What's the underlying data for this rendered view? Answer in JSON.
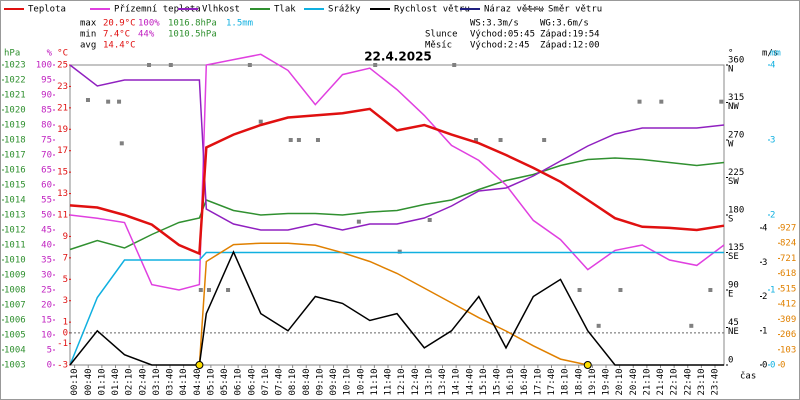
{
  "chart_data": {
    "type": "line",
    "title": "22.4.2025",
    "legend": [
      {
        "name": "Teplota",
        "color": "#e01010"
      },
      {
        "name": "Přízemní teplota",
        "color": "#e040e0"
      },
      {
        "name": "Vlhkost",
        "color": "#9020c0"
      },
      {
        "name": "Tlak",
        "color": "#309030"
      },
      {
        "name": "Srážky",
        "color": "#10b0e0"
      },
      {
        "name": "Rychlost větru",
        "color": "#000000"
      },
      {
        "name": "Náraz větru",
        "color": "#202080"
      },
      {
        "name": "Směr větru",
        "color": "#808080"
      }
    ],
    "stats": [
      [
        "max",
        "20.9°C",
        "100%",
        "1016.8hPa",
        "1.5mm"
      ],
      [
        "min",
        "7.4°C",
        "44%",
        "1010.5hPa"
      ],
      [
        "avg",
        "14.4°C"
      ]
    ],
    "wind": [
      "WS:3.3m/s",
      "WG:3.6m/s"
    ],
    "sun": [
      "Slunce",
      "Východ:05:45",
      "Západ:19:54"
    ],
    "moon": [
      "Měsíc",
      "Východ:2:45",
      "Západ:12:00"
    ],
    "xlabel": "čas",
    "xlim": [
      0,
      24
    ],
    "xticks": [
      {
        "value": 0.17,
        "label": "00:10"
      },
      {
        "value": 0.67,
        "label": "00:40"
      },
      {
        "value": 1.17,
        "label": "01:10"
      },
      {
        "value": 1.67,
        "label": "01:40"
      },
      {
        "value": 2.17,
        "label": "02:10"
      },
      {
        "value": 2.67,
        "label": "02:40"
      },
      {
        "value": 3.17,
        "label": "03:10"
      },
      {
        "value": 3.67,
        "label": "03:40"
      },
      {
        "value": 4.17,
        "label": "04:10"
      },
      {
        "value": 4.67,
        "label": "04:40"
      },
      {
        "value": 5.17,
        "label": "05:10"
      },
      {
        "value": 5.67,
        "label": "05:40"
      },
      {
        "value": 6.17,
        "label": "06:10"
      },
      {
        "value": 6.67,
        "label": "06:40"
      },
      {
        "value": 7.17,
        "label": "07:10"
      },
      {
        "value": 7.67,
        "label": "07:40"
      },
      {
        "value": 8.17,
        "label": "08:10"
      },
      {
        "value": 8.67,
        "label": "08:40"
      },
      {
        "value": 9.17,
        "label": "09:10"
      },
      {
        "value": 9.67,
        "label": "09:40"
      },
      {
        "value": 10.17,
        "label": "10:10"
      },
      {
        "value": 10.67,
        "label": "10:40"
      },
      {
        "value": 11.17,
        "label": "11:10"
      },
      {
        "value": 11.67,
        "label": "11:40"
      },
      {
        "value": 12.17,
        "label": "12:10"
      },
      {
        "value": 12.67,
        "label": "12:40"
      },
      {
        "value": 13.17,
        "label": "13:10"
      },
      {
        "value": 13.67,
        "label": "13:40"
      },
      {
        "value": 14.17,
        "label": "14:10"
      },
      {
        "value": 14.67,
        "label": "14:40"
      },
      {
        "value": 15.17,
        "label": "15:10"
      },
      {
        "value": 15.67,
        "label": "15:40"
      },
      {
        "value": 16.17,
        "label": "16:10"
      },
      {
        "value": 16.67,
        "label": "16:40"
      },
      {
        "value": 17.17,
        "label": "17:10"
      },
      {
        "value": 17.67,
        "label": "17:40"
      },
      {
        "value": 18.17,
        "label": "18:10"
      },
      {
        "value": 18.67,
        "label": "18:40"
      },
      {
        "value": 19.17,
        "label": "19:10"
      },
      {
        "value": 19.67,
        "label": "19:40"
      },
      {
        "value": 20.17,
        "label": "20:10"
      },
      {
        "value": 20.67,
        "label": "20:40"
      },
      {
        "value": 21.17,
        "label": "21:10"
      },
      {
        "value": 21.67,
        "label": "21:40"
      },
      {
        "value": 22.17,
        "label": "22:10"
      },
      {
        "value": 22.67,
        "label": "22:40"
      },
      {
        "value": 23.17,
        "label": "23:10"
      },
      {
        "value": 23.67,
        "label": "23:40"
      }
    ],
    "axes": {
      "hpa": {
        "unit": "hPa",
        "color": "#309030",
        "lim": [
          1003,
          1023
        ],
        "ticks": [
          1003,
          1004,
          1005,
          1006,
          1007,
          1008,
          1009,
          1010,
          1011,
          1012,
          1013,
          1014,
          1015,
          1016,
          1017,
          1018,
          1019,
          1020,
          1021,
          1022,
          1023
        ]
      },
      "pct": {
        "unit": "%",
        "color": "#c020c0",
        "lim": [
          0,
          100
        ],
        "ticks": [
          0,
          5,
          10,
          15,
          20,
          25,
          30,
          35,
          40,
          45,
          50,
          55,
          60,
          65,
          70,
          75,
          80,
          85,
          90,
          95,
          100
        ]
      },
      "temp": {
        "unit": "°C",
        "color": "#e01010",
        "lim": [
          -3,
          25
        ],
        "ticks": [
          -3,
          -1,
          0,
          1,
          3,
          5,
          7,
          9,
          11,
          13,
          15,
          17,
          19,
          21,
          23,
          25
        ]
      },
      "dir": {
        "unit": "°",
        "color": "#000000",
        "lim": [
          0,
          360
        ],
        "ticks": [
          0,
          45,
          90,
          135,
          180,
          225,
          270,
          315,
          360
        ],
        "compass": [
          {
            "value": 45,
            "label": "NE"
          },
          {
            "value": 90,
            "label": "E"
          },
          {
            "value": 135,
            "label": "SE"
          },
          {
            "value": 180,
            "label": "S"
          },
          {
            "value": 225,
            "label": "SW"
          },
          {
            "value": 270,
            "label": "W"
          },
          {
            "value": 315,
            "label": "NW"
          },
          {
            "value": 360,
            "label": "N"
          }
        ]
      },
      "ms": {
        "unit": "m/s",
        "color": "#000000",
        "lim": [
          0,
          4
        ],
        "ticks": [
          0,
          1,
          2,
          3,
          4
        ]
      },
      "mm": {
        "unit": "mm",
        "color": "#10b0e0",
        "lim": [
          0,
          4
        ],
        "ticks": [
          0,
          1,
          2,
          3,
          4
        ]
      },
      "rad": {
        "color": "#e08000",
        "lim": [
          0,
          927
        ],
        "ticks": [
          0,
          103,
          206,
          309,
          412,
          515,
          618,
          721,
          824,
          927
        ]
      }
    },
    "x": [
      0,
      1,
      2,
      3,
      4,
      4.75,
      5,
      6,
      7,
      8,
      9,
      10,
      11,
      12,
      13,
      14,
      15,
      16,
      17,
      18,
      19,
      20,
      21,
      22,
      23,
      24
    ],
    "series": [
      {
        "name": "Tlak",
        "color": "#309030",
        "axis": "hpa",
        "values": [
          1010.7,
          1011.3,
          1010.8,
          1011.7,
          1012.5,
          1012.8,
          1014.0,
          1013.3,
          1013.0,
          1013.1,
          1013.1,
          1013.0,
          1013.2,
          1013.3,
          1013.7,
          1014.0,
          1014.7,
          1015.3,
          1015.7,
          1016.3,
          1016.7,
          1016.8,
          1016.7,
          1016.5,
          1016.3,
          1016.5
        ]
      },
      {
        "name": "Přízemní teplota",
        "color": "#e040e0",
        "axis": "temp",
        "values": [
          11.0,
          10.7,
          10.3,
          4.5,
          4.0,
          4.5,
          25.0,
          25.5,
          26.0,
          24.5,
          21.3,
          24.1,
          24.7,
          22.7,
          20.3,
          17.5,
          16.1,
          13.8,
          10.5,
          8.7,
          5.9,
          7.7,
          8.2,
          6.8,
          6.3,
          8.2
        ]
      },
      {
        "name": "Vlhkost",
        "color": "#9020c0",
        "axis": "pct",
        "values": [
          100,
          93,
          95,
          95,
          95,
          95,
          52,
          47,
          45,
          45,
          47,
          45,
          47,
          47,
          49,
          53,
          58,
          59,
          63,
          68,
          73,
          77,
          79,
          79,
          79,
          80
        ]
      },
      {
        "name": "Srážky",
        "color": "#10b0e0",
        "axis": "mm",
        "values": [
          0,
          0.9,
          1.4,
          1.4,
          1.4,
          1.4,
          1.5,
          1.5,
          1.5,
          1.5,
          1.5,
          1.5,
          1.5,
          1.5,
          1.5,
          1.5,
          1.5,
          1.5,
          1.5,
          1.5,
          1.5,
          1.5,
          1.5,
          1.5,
          1.5,
          1.5
        ]
      },
      {
        "name": "Sluneční záření",
        "color": "#e08000",
        "axis": "rad",
        "values": [
          null,
          null,
          null,
          null,
          null,
          0,
          700,
          815,
          824,
          824,
          810,
          760,
          700,
          620,
          520,
          420,
          320,
          230,
          130,
          40,
          0,
          null,
          null,
          null,
          null,
          null
        ]
      },
      {
        "name": "Rychlost větru",
        "color": "#000000",
        "axis": "ms",
        "values": [
          0,
          1.0,
          0.3,
          0,
          0,
          0,
          1.5,
          3.3,
          1.5,
          1.0,
          2.0,
          1.8,
          1.3,
          1.5,
          0.5,
          1.0,
          2.0,
          0.5,
          2.0,
          2.5,
          1.0,
          0,
          0,
          0,
          0,
          0
        ]
      },
      {
        "name": "Teplota",
        "color": "#e01010",
        "axis": "temp",
        "values": [
          11.9,
          11.7,
          11.0,
          10.1,
          8.2,
          7.4,
          17.3,
          18.5,
          19.4,
          20.1,
          20.3,
          20.5,
          20.9,
          18.9,
          19.4,
          18.5,
          17.7,
          16.6,
          15.4,
          14.1,
          12.4,
          10.7,
          9.9,
          9.8,
          9.6,
          10.0
        ]
      }
    ],
    "direction": {
      "color": "#808080",
      "x": [
        0.66,
        1.4,
        1.8,
        1.9,
        2.9,
        3.7,
        4.8,
        5.1,
        5.8,
        6.6,
        7.0,
        8.1,
        8.4,
        9.1,
        10.6,
        11.2,
        12.1,
        13.2,
        14.1,
        14.9,
        15.8,
        17.4,
        18.7,
        19.4,
        20.2,
        20.9,
        21.7,
        22.8,
        23.5,
        23.9
      ],
      "values": [
        318,
        316,
        316,
        266,
        360,
        360,
        90,
        90,
        90,
        360,
        292,
        270,
        270,
        270,
        172,
        360,
        136,
        174,
        360,
        270,
        270,
        270,
        90,
        47,
        90,
        316,
        316,
        47,
        90,
        316
      ]
    }
  }
}
